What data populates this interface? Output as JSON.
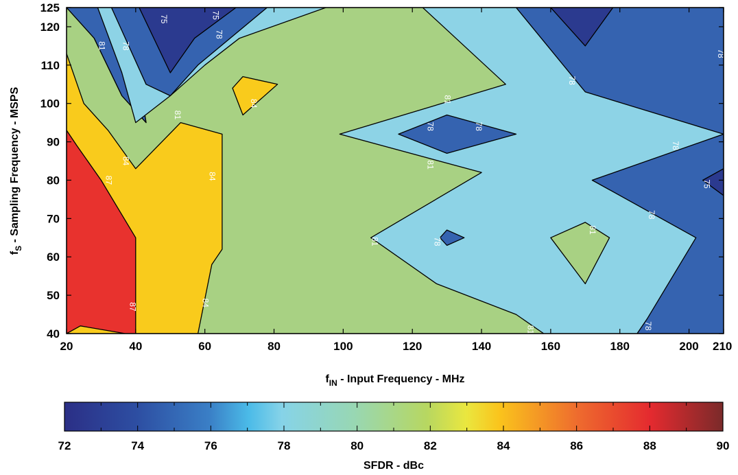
{
  "chart_data": {
    "type": "contour",
    "xlabel_main": "f",
    "xlabel_sub": "IN",
    "xlabel_rest": " - Input Frequency - MHz",
    "ylabel_main": "f",
    "ylabel_sub": "S",
    "ylabel_rest": " - Sampling Frequency - MSPS",
    "xlim": [
      20,
      210
    ],
    "ylim": [
      40,
      125
    ],
    "x_ticks": [
      20,
      40,
      60,
      80,
      100,
      120,
      140,
      160,
      180,
      200,
      210
    ],
    "y_ticks": [
      40,
      50,
      60,
      70,
      80,
      90,
      100,
      110,
      120,
      125
    ],
    "colorbar": {
      "label": "SFDR - dBc",
      "min": 72,
      "max": 90,
      "ticks": [
        72,
        74,
        76,
        78,
        80,
        82,
        84,
        86,
        88,
        90
      ]
    },
    "levels": {
      "75": "#2b3a8f",
      "78": "#3563b0",
      "81": "#8dd3e6",
      "84": "#a8d183",
      "87": "#f9cb1c",
      "90": "#e8322e"
    },
    "regions": [
      {
        "level": "78",
        "points": [
          [
            20,
            40
          ],
          [
            210,
            40
          ],
          [
            210,
            125
          ],
          [
            20,
            125
          ]
        ]
      },
      {
        "level": "81",
        "points": [
          [
            20,
            125
          ],
          [
            20,
            40
          ],
          [
            185,
            40
          ],
          [
            188,
            44
          ],
          [
            202,
            65
          ],
          [
            172,
            80
          ],
          [
            210,
            92
          ],
          [
            170,
            103
          ],
          [
            150,
            125
          ]
        ]
      },
      {
        "level": "84",
        "points": [
          [
            20,
            113
          ],
          [
            20,
            40
          ],
          [
            158,
            40
          ],
          [
            150,
            45
          ],
          [
            127,
            53
          ],
          [
            108,
            65
          ],
          [
            140,
            82
          ],
          [
            99,
            92
          ],
          [
            147,
            105
          ],
          [
            123,
            125
          ],
          [
            55,
            125
          ],
          [
            49,
            122
          ],
          [
            41,
            106
          ],
          [
            43,
            95
          ],
          [
            36,
            102
          ],
          [
            28,
            117
          ],
          [
            26,
            125
          ],
          [
            20,
            125
          ]
        ]
      },
      {
        "level": "87",
        "points": [
          [
            20,
            40
          ],
          [
            20,
            113
          ],
          [
            25,
            100
          ],
          [
            32,
            93
          ],
          [
            40,
            83
          ],
          [
            53,
            95
          ],
          [
            65,
            92
          ],
          [
            65,
            62
          ],
          [
            62,
            58
          ],
          [
            58,
            40
          ]
        ]
      },
      {
        "level": "90",
        "points": [
          [
            20,
            40
          ],
          [
            20,
            93
          ],
          [
            23,
            89
          ],
          [
            30,
            80
          ],
          [
            40,
            65
          ],
          [
            40,
            40
          ],
          [
            37,
            40
          ],
          [
            24,
            42
          ]
        ]
      },
      {
        "level": "78",
        "points": [
          [
            20,
            125
          ],
          [
            28,
            117
          ],
          [
            36,
            102
          ],
          [
            43,
            95
          ],
          [
            41,
            106
          ],
          [
            49,
            122
          ],
          [
            55,
            125
          ]
        ]
      },
      {
        "level": "81",
        "points": [
          [
            29,
            125
          ],
          [
            36,
            108
          ],
          [
            40,
            95
          ],
          [
            50,
            102
          ],
          [
            60,
            110
          ],
          [
            70,
            117
          ],
          [
            95,
            125
          ]
        ]
      },
      {
        "level": "78",
        "points": [
          [
            33,
            125
          ],
          [
            43,
            105
          ],
          [
            50,
            102
          ],
          [
            58,
            110
          ],
          [
            78,
            125
          ]
        ]
      },
      {
        "level": "75",
        "points": [
          [
            41,
            125
          ],
          [
            50,
            108
          ],
          [
            57,
            117
          ],
          [
            69,
            125
          ]
        ]
      },
      {
        "level": "87",
        "points": [
          [
            68,
            104
          ],
          [
            71,
            107
          ],
          [
            81,
            105
          ],
          [
            71,
            97
          ]
        ]
      },
      {
        "level": "78",
        "points": [
          [
            116,
            92
          ],
          [
            130,
            97
          ],
          [
            150,
            92
          ],
          [
            130,
            87
          ]
        ]
      },
      {
        "level": "78",
        "points": [
          [
            128,
            65
          ],
          [
            130,
            67
          ],
          [
            135,
            65
          ],
          [
            130,
            63
          ]
        ]
      },
      {
        "level": "84",
        "points": [
          [
            160,
            65
          ],
          [
            170,
            69
          ],
          [
            177,
            65
          ],
          [
            170,
            53
          ]
        ]
      },
      {
        "level": "75",
        "points": [
          [
            160,
            125
          ],
          [
            170,
            115
          ],
          [
            178,
            125
          ]
        ]
      },
      {
        "level": "75",
        "points": [
          [
            210,
            76
          ],
          [
            210,
            83
          ],
          [
            204,
            80
          ]
        ]
      }
    ],
    "labels": [
      {
        "text": "75",
        "x": 48,
        "y": 122
      },
      {
        "text": "75",
        "x": 63,
        "y": 123
      },
      {
        "text": "78",
        "x": 37,
        "y": 115
      },
      {
        "text": "78",
        "x": 64,
        "y": 118
      },
      {
        "text": "81",
        "x": 30,
        "y": 115
      },
      {
        "text": "81",
        "x": 52,
        "y": 97
      },
      {
        "text": "84",
        "x": 37,
        "y": 85
      },
      {
        "text": "87",
        "x": 32,
        "y": 80
      },
      {
        "text": "84",
        "x": 62,
        "y": 81
      },
      {
        "text": "84",
        "x": 74,
        "y": 100
      },
      {
        "text": "81",
        "x": 130,
        "y": 101
      },
      {
        "text": "78",
        "x": 125,
        "y": 94
      },
      {
        "text": "78",
        "x": 139,
        "y": 94
      },
      {
        "text": "81",
        "x": 125,
        "y": 84
      },
      {
        "text": "78",
        "x": 166,
        "y": 106
      },
      {
        "text": "78",
        "x": 209,
        "y": 113
      },
      {
        "text": "78",
        "x": 196,
        "y": 89
      },
      {
        "text": "75",
        "x": 205,
        "y": 79
      },
      {
        "text": "78",
        "x": 189,
        "y": 71
      },
      {
        "text": "81",
        "x": 172,
        "y": 67
      },
      {
        "text": "78",
        "x": 127,
        "y": 64
      },
      {
        "text": "81",
        "x": 109,
        "y": 64
      },
      {
        "text": "87",
        "x": 39,
        "y": 47
      },
      {
        "text": "84",
        "x": 60,
        "y": 48
      },
      {
        "text": "81",
        "x": 154,
        "y": 41
      },
      {
        "text": "78",
        "x": 188,
        "y": 42
      }
    ]
  }
}
